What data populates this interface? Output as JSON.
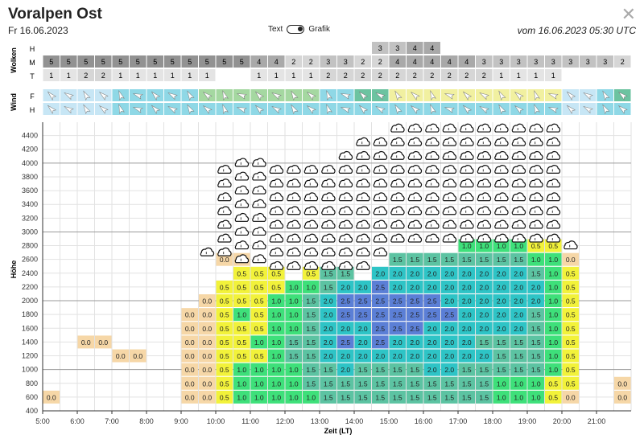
{
  "header": {
    "title": "Voralpen Ost",
    "date": "Fr 16.06.2023",
    "toggle_left": "Text",
    "toggle_right": "Grafik",
    "updated": "vom 16.06.2023 05:30 UTC",
    "close_icon": "close-icon"
  },
  "chart_data": {
    "type": "heatmap",
    "x_times": [
      "5:00",
      "5:30",
      "6:00",
      "6:30",
      "7:00",
      "7:30",
      "8:00",
      "8:30",
      "9:00",
      "9:30",
      "10:00",
      "10:30",
      "11:00",
      "11:30",
      "12:00",
      "12:30",
      "13:00",
      "13:30",
      "14:00",
      "14:30",
      "15:00",
      "15:30",
      "16:00",
      "16:30",
      "17:00",
      "17:30",
      "18:00",
      "18:30",
      "19:00",
      "19:30",
      "20:00",
      "20:30",
      "21:00",
      "21:30"
    ],
    "xlabel": "Zeit (LT)",
    "ylabel": "Höhe",
    "ylim": [
      400,
      4600
    ],
    "y_ticks": [
      400,
      600,
      800,
      1000,
      1200,
      1400,
      1600,
      1800,
      2000,
      2200,
      2400,
      2600,
      2800,
      3000,
      3200,
      3400,
      3600,
      3800,
      4000,
      4200,
      4400
    ],
    "x_tick_labels": [
      "5:00",
      "6:00",
      "7:00",
      "8:00",
      "9:00",
      "10:00",
      "11:00",
      "12:00",
      "13:00",
      "14:00",
      "15:00",
      "16:00",
      "17:00",
      "18:00",
      "19:00",
      "20:00",
      "21:00"
    ],
    "heights": [
      600,
      800,
      1000,
      1200,
      1400,
      1600,
      1800,
      2000,
      2200,
      2400,
      2600,
      2800
    ],
    "values": [
      [
        "0.0",
        null,
        null,
        null,
        null,
        null,
        null,
        null,
        null,
        null,
        null,
        null
      ],
      [
        null,
        null,
        null,
        null,
        null,
        null,
        null,
        null,
        null,
        null,
        null,
        null
      ],
      [
        null,
        null,
        null,
        null,
        "0.0",
        null,
        null,
        null,
        null,
        null,
        null,
        null
      ],
      [
        null,
        null,
        null,
        null,
        "0.0",
        null,
        null,
        null,
        null,
        null,
        null,
        null
      ],
      [
        null,
        null,
        null,
        "0.0",
        null,
        null,
        null,
        null,
        null,
        null,
        null,
        null
      ],
      [
        null,
        null,
        null,
        "0.0",
        null,
        null,
        null,
        null,
        null,
        null,
        null,
        null
      ],
      [
        null,
        null,
        null,
        null,
        null,
        null,
        null,
        null,
        null,
        null,
        null,
        null
      ],
      [
        null,
        null,
        null,
        null,
        null,
        null,
        null,
        null,
        null,
        null,
        null,
        null
      ],
      [
        "0.0",
        "0.0",
        "0.0",
        "0.0",
        "0.0",
        "0.0",
        "0.0",
        null,
        null,
        null,
        null,
        null
      ],
      [
        "0.0",
        "0.0",
        "0.0",
        "0.0",
        "0.0",
        "0.0",
        "0.0",
        "0.0",
        null,
        null,
        null,
        null
      ],
      [
        "0.5",
        "0.5",
        "0.5",
        "0.5",
        "0.5",
        "0.5",
        "0.5",
        "0.5",
        "0.5",
        null,
        "0.0",
        null
      ],
      [
        "1.0",
        "1.0",
        "1.0",
        "0.5",
        "0.5",
        "0.5",
        "1.0",
        "0.5",
        "0.5",
        "0.5",
        "0.0",
        null
      ],
      [
        "1.0",
        "1.0",
        "1.0",
        "0.5",
        "1.0",
        "0.5",
        "0.5",
        "0.5",
        "0.5",
        "0.5",
        null,
        null
      ],
      [
        "1.0",
        "1.0",
        "1.0",
        "1.0",
        "1.0",
        "1.0",
        "1.0",
        "1.0",
        "0.5",
        "0.5",
        null,
        null
      ],
      [
        "1.0",
        "1.0",
        "1.0",
        "1.5",
        "1.5",
        "1.0",
        "1.0",
        "1.0",
        "1.0",
        null,
        null,
        null
      ],
      [
        "1.0",
        "1.5",
        "1.5",
        "1.5",
        "1.5",
        "1.5",
        "1.5",
        "1.5",
        "1.0",
        "0.5",
        null,
        null
      ],
      [
        "1.5",
        "1.5",
        "1.5",
        "2.0",
        "2.0",
        "2.0",
        "2.0",
        "2.0",
        "1.5",
        "1.5",
        null,
        null
      ],
      [
        "1.5",
        "1.5",
        "2.0",
        "2.0",
        "2.5",
        "2.0",
        "2.5",
        "2.5",
        "2.0",
        "1.5",
        null,
        null
      ],
      [
        "1.5",
        "1.5",
        "1.5",
        "2.0",
        "2.0",
        "2.0",
        "2.5",
        "2.5",
        "2.0",
        null,
        null,
        null
      ],
      [
        "1.5",
        "1.5",
        "1.5",
        "2.0",
        "2.5",
        "2.5",
        "2.5",
        "2.5",
        "2.5",
        "2.0",
        null,
        null
      ],
      [
        "1.5",
        "1.5",
        "1.5",
        "2.0",
        "2.0",
        "2.5",
        "2.5",
        "2.5",
        "2.0",
        "2.0",
        "1.5",
        null
      ],
      [
        "1.5",
        "1.5",
        "1.5",
        "2.0",
        "2.0",
        "2.5",
        "2.5",
        "2.5",
        "2.0",
        "2.0",
        "1.5",
        null
      ],
      [
        "1.5",
        "1.5",
        "2.0",
        "2.0",
        "2.0",
        "2.0",
        "2.5",
        "2.5",
        "2.0",
        "2.0",
        "1.5",
        null
      ],
      [
        "1.5",
        "1.5",
        "2.0",
        "2.0",
        "2.0",
        "2.0",
        "2.5",
        "2.0",
        "2.0",
        "2.0",
        "1.5",
        null
      ],
      [
        "1.5",
        "1.5",
        "1.5",
        "2.0",
        "2.0",
        "2.0",
        "2.0",
        "2.0",
        "2.0",
        "2.0",
        "1.5",
        "1.0"
      ],
      [
        "1.5",
        "1.5",
        "1.5",
        "2.0",
        "1.5",
        "2.0",
        "2.0",
        "2.0",
        "2.0",
        "2.0",
        "1.5",
        "1.0"
      ],
      [
        "1.0",
        "1.0",
        "1.5",
        "1.5",
        "1.5",
        "2.0",
        "2.0",
        "2.0",
        "2.0",
        "2.0",
        "1.5",
        "1.0"
      ],
      [
        "1.0",
        "1.0",
        "1.5",
        "1.5",
        "1.5",
        "2.0",
        "2.0",
        "2.0",
        "2.0",
        "2.0",
        "1.5",
        "1.0"
      ],
      [
        "1.0",
        "1.0",
        "1.5",
        "1.5",
        "1.5",
        "1.5",
        "1.5",
        "2.0",
        "2.0",
        "1.5",
        "1.0",
        "0.5"
      ],
      [
        "0.5",
        "0.5",
        "1.0",
        "1.0",
        "1.0",
        "1.0",
        "1.0",
        "1.0",
        "1.0",
        "1.0",
        "1.0",
        "0.5"
      ],
      [
        "0.0",
        "0.5",
        "0.5",
        "0.5",
        "0.5",
        "0.5",
        "0.5",
        "0.5",
        "0.5",
        "0.5",
        "0.0",
        null
      ],
      [
        null,
        null,
        null,
        null,
        null,
        null,
        null,
        null,
        null,
        null,
        null,
        null
      ],
      [
        null,
        null,
        null,
        null,
        null,
        null,
        null,
        null,
        null,
        null,
        null,
        null
      ],
      [
        "0.0",
        "0.0",
        null,
        null,
        null,
        null,
        null,
        null,
        null,
        null,
        null,
        null
      ]
    ],
    "cloud_base": [
      null,
      null,
      null,
      null,
      null,
      null,
      null,
      null,
      null,
      2700,
      2700,
      2600,
      2600,
      2500,
      2500,
      2500,
      2500,
      2500,
      2500,
      2700,
      2900,
      2900,
      2900,
      2900,
      2900,
      2900,
      2900,
      2900,
      2900,
      2900,
      2800,
      null,
      null,
      null
    ],
    "cloud_top": [
      null,
      null,
      null,
      null,
      null,
      null,
      null,
      null,
      null,
      null,
      4000,
      4000,
      4000,
      4000,
      4000,
      4000,
      4000,
      4100,
      4300,
      4400,
      4500,
      4500,
      4500,
      4500,
      4500,
      4500,
      4500,
      4500,
      4500,
      4500,
      null,
      null,
      null,
      null
    ],
    "color_scale": {
      "0.0": "#f6d7a7",
      "0.5": "#f2f23a",
      "1.0": "#3ee07a",
      "1.5": "#5cc3a2",
      "2.0": "#2ec4c6",
      "2.5": "#5b7fd6"
    }
  },
  "clouds": {
    "label": "Wolken",
    "rows": [
      {
        "name": "H",
        "values": [
          null,
          null,
          null,
          null,
          null,
          null,
          null,
          null,
          null,
          null,
          null,
          null,
          null,
          null,
          null,
          null,
          null,
          null,
          null,
          "3",
          "3",
          "4",
          "4",
          null,
          null,
          null,
          null,
          null,
          null,
          null,
          null,
          null,
          null,
          null
        ]
      },
      {
        "name": "M",
        "values": [
          "5",
          "5",
          "5",
          "5",
          "5",
          "5",
          "5",
          "5",
          "5",
          "5",
          "5",
          "5",
          "4",
          "4",
          "2",
          "2",
          "3",
          "3",
          "2",
          "2",
          "4",
          "4",
          "4",
          "4",
          "4",
          "3",
          "3",
          "3",
          "3",
          "3",
          "3",
          "3",
          "3",
          "2"
        ]
      },
      {
        "name": "T",
        "values": [
          "1",
          "1",
          "2",
          "2",
          "1",
          "1",
          "1",
          "1",
          "1",
          "1",
          null,
          null,
          "1",
          "1",
          "1",
          "1",
          "2",
          "2",
          "2",
          "2",
          "2",
          "2",
          "2",
          "2",
          "2",
          "2",
          "1",
          "1",
          "1",
          "1",
          null,
          null,
          null,
          null
        ]
      }
    ]
  },
  "wind": {
    "label": "Wind",
    "rows": [
      {
        "name": "F",
        "colors": [
          "#c7e6f5",
          "#c7e6f5",
          "#c7e6f5",
          "#c7e6f5",
          "#8fd8e6",
          "#8fd8e6",
          "#8fd8e6",
          "#8fd8e6",
          "#8fd8e6",
          "#a5d8a1",
          "#a5d8a1",
          "#a5d8a1",
          "#a5d8a1",
          "#a5d8a1",
          "#a5d8a1",
          "#a5d8a1",
          "#8fd8e6",
          "#8fd8e6",
          "#6cc3a0",
          "#6cc3a0",
          "#f1f0a0",
          "#f1f0a0",
          "#f1f0a0",
          "#f1f0a0",
          "#f1f0a0",
          "#f1f0a0",
          "#f1f0a0",
          "#f1f0a0",
          "#f1f0a0",
          "#f1f0a0",
          "#c7e6f5",
          "#c7e6f5",
          "#8fd8e6",
          "#6cc3a0"
        ]
      },
      {
        "name": "H",
        "colors": [
          "#c7e6f5",
          "#c7e6f5",
          "#c7e6f5",
          "#c7e6f5",
          "#8fd8e6",
          "#8fd8e6",
          "#8fd8e6",
          "#8fd8e6",
          "#8fd8e6",
          "#8fd8e6",
          "#8fd8e6",
          "#8fd8e6",
          "#8fd8e6",
          "#8fd8e6",
          "#8fd8e6",
          "#8fd8e6",
          "#8fd8e6",
          "#8fd8e6",
          "#8fd8e6",
          "#8fd8e6",
          "#8fd8e6",
          "#8fd8e6",
          "#8fd8e6",
          "#8fd8e6",
          "#8fd8e6",
          "#8fd8e6",
          "#8fd8e6",
          "#8fd8e6",
          "#8fd8e6",
          "#8fd8e6",
          "#c7e6f5",
          "#c7e6f5",
          "#8fd8e6",
          "#8fd8e6"
        ]
      }
    ]
  }
}
